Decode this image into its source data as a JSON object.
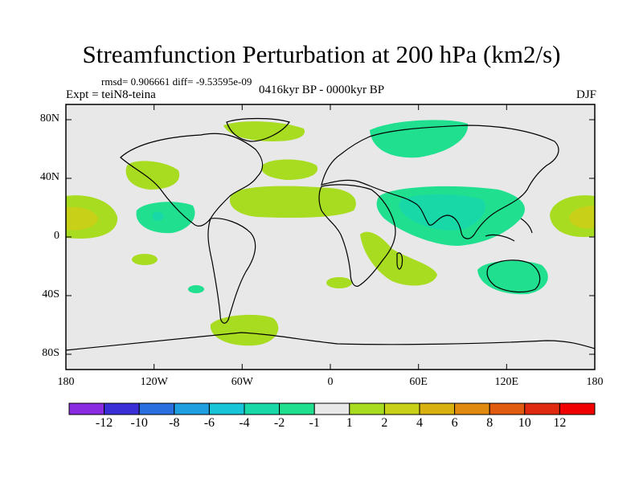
{
  "title": "Streamfunction Perturbation at 200 hPa (km2/s)",
  "stats": "rmsd= 0.906661 diff= -9.53595e-09",
  "experiment": "Expt = teiN8-teina",
  "period": "0416kyr BP - 0000kyr BP",
  "season": "DJF",
  "lat_labels": [
    "80N",
    "40N",
    "0",
    "40S",
    "80S"
  ],
  "lon_labels": [
    "180",
    "120W",
    "60W",
    "0",
    "60E",
    "120E",
    "180"
  ],
  "colorbar": {
    "labels": [
      "-12",
      "-10",
      "-8",
      "-6",
      "-4",
      "-2",
      "-1",
      "1",
      "2",
      "4",
      "6",
      "8",
      "10",
      "12"
    ],
    "colors": [
      "#8a2be2",
      "#3a2fd6",
      "#2a6fe0",
      "#1f9ee0",
      "#17c4d8",
      "#18d8a8",
      "#20e090",
      "#e8e8e8",
      "#a8dc20",
      "#c8d018",
      "#d8b010",
      "#e08a10",
      "#e05a10",
      "#e02a10",
      "#f00000"
    ]
  }
}
